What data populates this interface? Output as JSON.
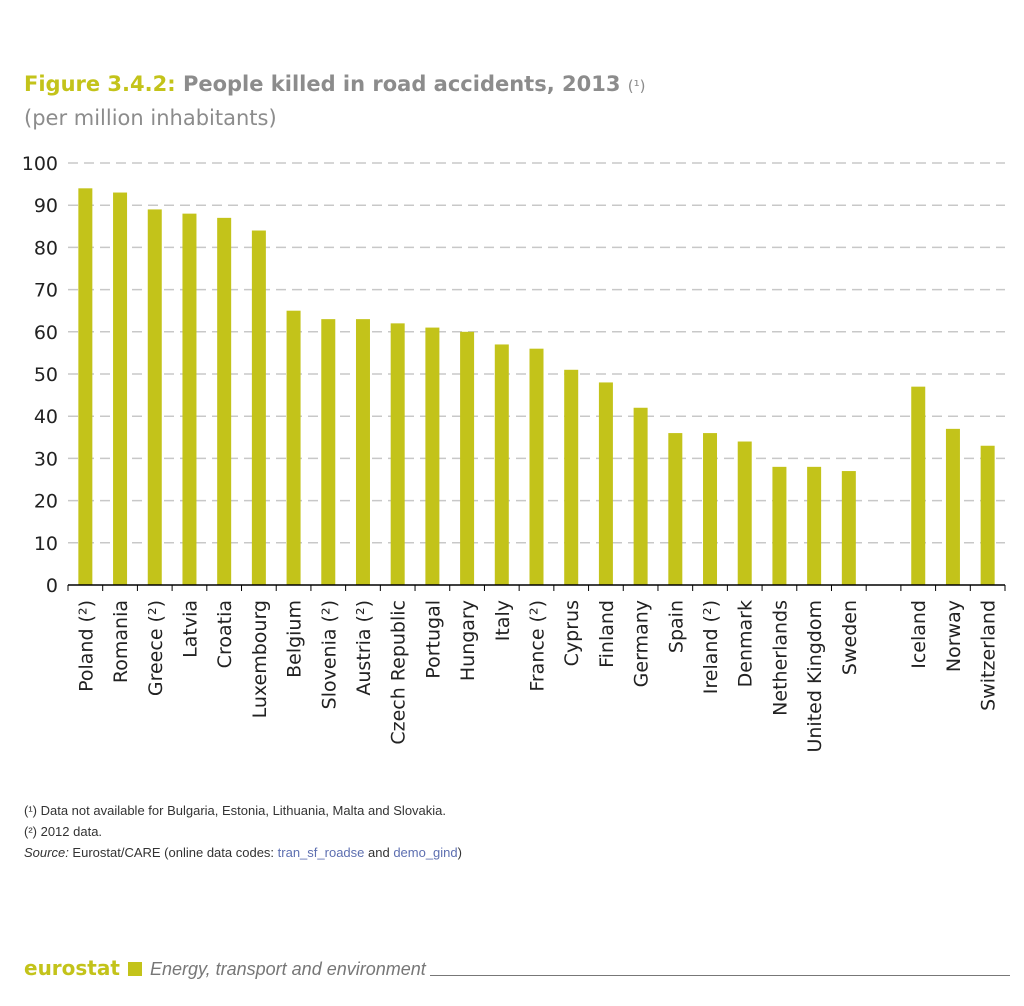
{
  "chart_data": {
    "type": "bar",
    "title_prefix": "Figure 3.4.2:",
    "title": "People killed in road accidents, 2013",
    "title_note": "(¹)",
    "subtitle": "(per million inhabitants)",
    "ylim": [
      0,
      100
    ],
    "yticks": [
      0,
      10,
      20,
      30,
      40,
      50,
      60,
      70,
      80,
      90,
      100
    ],
    "grid": true,
    "categories": [
      "Poland (²)",
      "Romania",
      "Greece (²)",
      "Latvia",
      "Croatia",
      "Luxembourg",
      "Belgium",
      "Slovenia (²)",
      "Austria (²)",
      "Czech Republic",
      "Portugal",
      "Hungary",
      "Italy",
      "France (²)",
      "Cyprus",
      "Finland",
      "Germany",
      "Spain",
      "Ireland (²)",
      "Denmark",
      "Netherlands",
      "United Kingdom",
      "Sweden",
      "",
      "Iceland",
      "Norway",
      "Switzerland"
    ],
    "values": [
      94,
      93,
      89,
      88,
      87,
      84,
      65,
      63,
      63,
      62,
      61,
      60,
      57,
      56,
      51,
      48,
      42,
      36,
      36,
      34,
      28,
      28,
      27,
      null,
      47,
      37,
      33
    ],
    "color": "#c3c31a"
  },
  "notes": {
    "n1": "(¹) Data not available for Bulgaria, Estonia, Lithuania, Malta and Slovakia.",
    "n2": "(²) 2012 data.",
    "source_label": "Source:",
    "source_text": " Eurostat/CARE (online data codes: ",
    "link1": "tran_sf_roadse",
    "and": " and ",
    "link2": "demo_gind",
    "close": ")"
  },
  "footer": {
    "brand": "eurostat",
    "section": "Energy, transport and environment"
  }
}
